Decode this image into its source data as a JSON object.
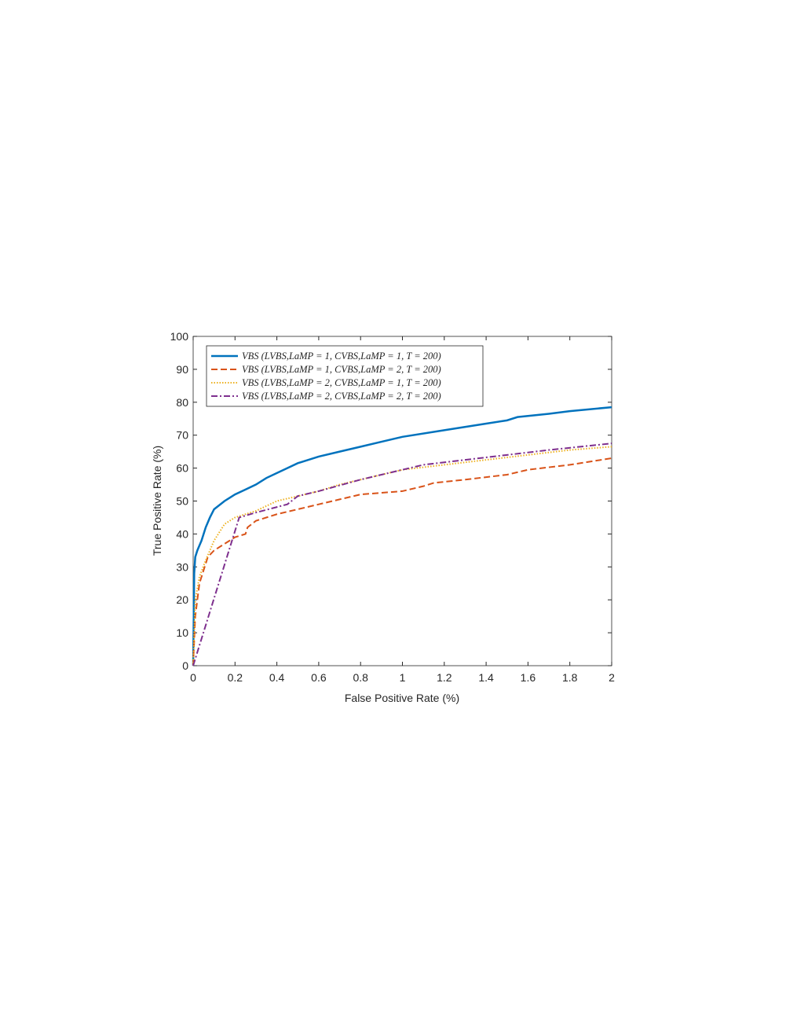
{
  "chart_data": {
    "type": "line",
    "xlabel": "False Positive Rate (%)",
    "ylabel": "True Positive Rate (%)",
    "xlim": [
      0,
      2
    ],
    "ylim": [
      0,
      100
    ],
    "xticks": [
      0,
      0.2,
      0.4,
      0.6,
      0.8,
      1,
      1.2,
      1.4,
      1.6,
      1.8,
      2
    ],
    "yticks": [
      0,
      10,
      20,
      30,
      40,
      50,
      60,
      70,
      80,
      90,
      100
    ],
    "legend": "upper-left",
    "series": [
      {
        "name": "VBS (LVBS,LaMP = 1, CVBS,LaMP = 1, T = 200)",
        "color": "#0072bd",
        "style": "solid",
        "x": [
          0,
          0.005,
          0.01,
          0.02,
          0.04,
          0.06,
          0.08,
          0.1,
          0.15,
          0.2,
          0.25,
          0.3,
          0.35,
          0.4,
          0.45,
          0.5,
          0.6,
          0.7,
          0.8,
          0.9,
          1.0,
          1.2,
          1.4,
          1.5,
          1.55,
          1.7,
          1.8,
          2.0
        ],
        "values": [
          0,
          28,
          33,
          35,
          38,
          42,
          45,
          47.5,
          50,
          52,
          53.5,
          55,
          57,
          58.5,
          60,
          61.5,
          63.5,
          65,
          66.5,
          68,
          69.5,
          71.5,
          73.5,
          74.5,
          75.5,
          76.5,
          77.3,
          78.5
        ]
      },
      {
        "name": "VBS (LVBS,LaMP = 1, CVBS,LaMP = 2, T = 200)",
        "color": "#d95319",
        "style": "dashed",
        "x": [
          0,
          0.01,
          0.03,
          0.07,
          0.1,
          0.15,
          0.2,
          0.25,
          0.26,
          0.3,
          0.4,
          0.5,
          0.6,
          0.7,
          0.8,
          1.0,
          1.1,
          1.15,
          1.3,
          1.5,
          1.6,
          1.8,
          2.0
        ],
        "values": [
          0,
          15,
          25,
          33,
          35,
          37,
          39,
          40,
          42,
          44,
          46,
          47.5,
          49,
          50.5,
          52,
          53,
          54.5,
          55.5,
          56.5,
          58,
          59.5,
          61,
          63
        ]
      },
      {
        "name": "VBS (LVBS,LaMP = 2, CVBS,LaMP = 1, T = 200)",
        "color": "#edb120",
        "style": "dotted",
        "x": [
          0,
          0.01,
          0.03,
          0.06,
          0.1,
          0.15,
          0.2,
          0.3,
          0.4,
          0.5,
          0.6,
          0.7,
          0.8,
          0.9,
          1.0,
          1.2,
          1.4,
          1.6,
          1.8,
          2.0
        ],
        "values": [
          0,
          20,
          27,
          32,
          38,
          43,
          45,
          47,
          50,
          51.5,
          53,
          55,
          56.5,
          58,
          59.5,
          61,
          62.5,
          64,
          65.5,
          66.5
        ]
      },
      {
        "name": "VBS (LVBS,LaMP = 2, CVBS,LaMP = 2, T = 200)",
        "color": "#7e2f8e",
        "style": "dashdot",
        "x": [
          0,
          0.22,
          0.3,
          0.45,
          0.5,
          0.6,
          0.8,
          1.0,
          1.1,
          1.3,
          1.5,
          1.7,
          2.0
        ],
        "values": [
          0,
          45,
          46.5,
          49,
          51.5,
          53,
          56.5,
          59.5,
          61,
          62.5,
          64,
          65.5,
          67.5
        ]
      }
    ]
  }
}
